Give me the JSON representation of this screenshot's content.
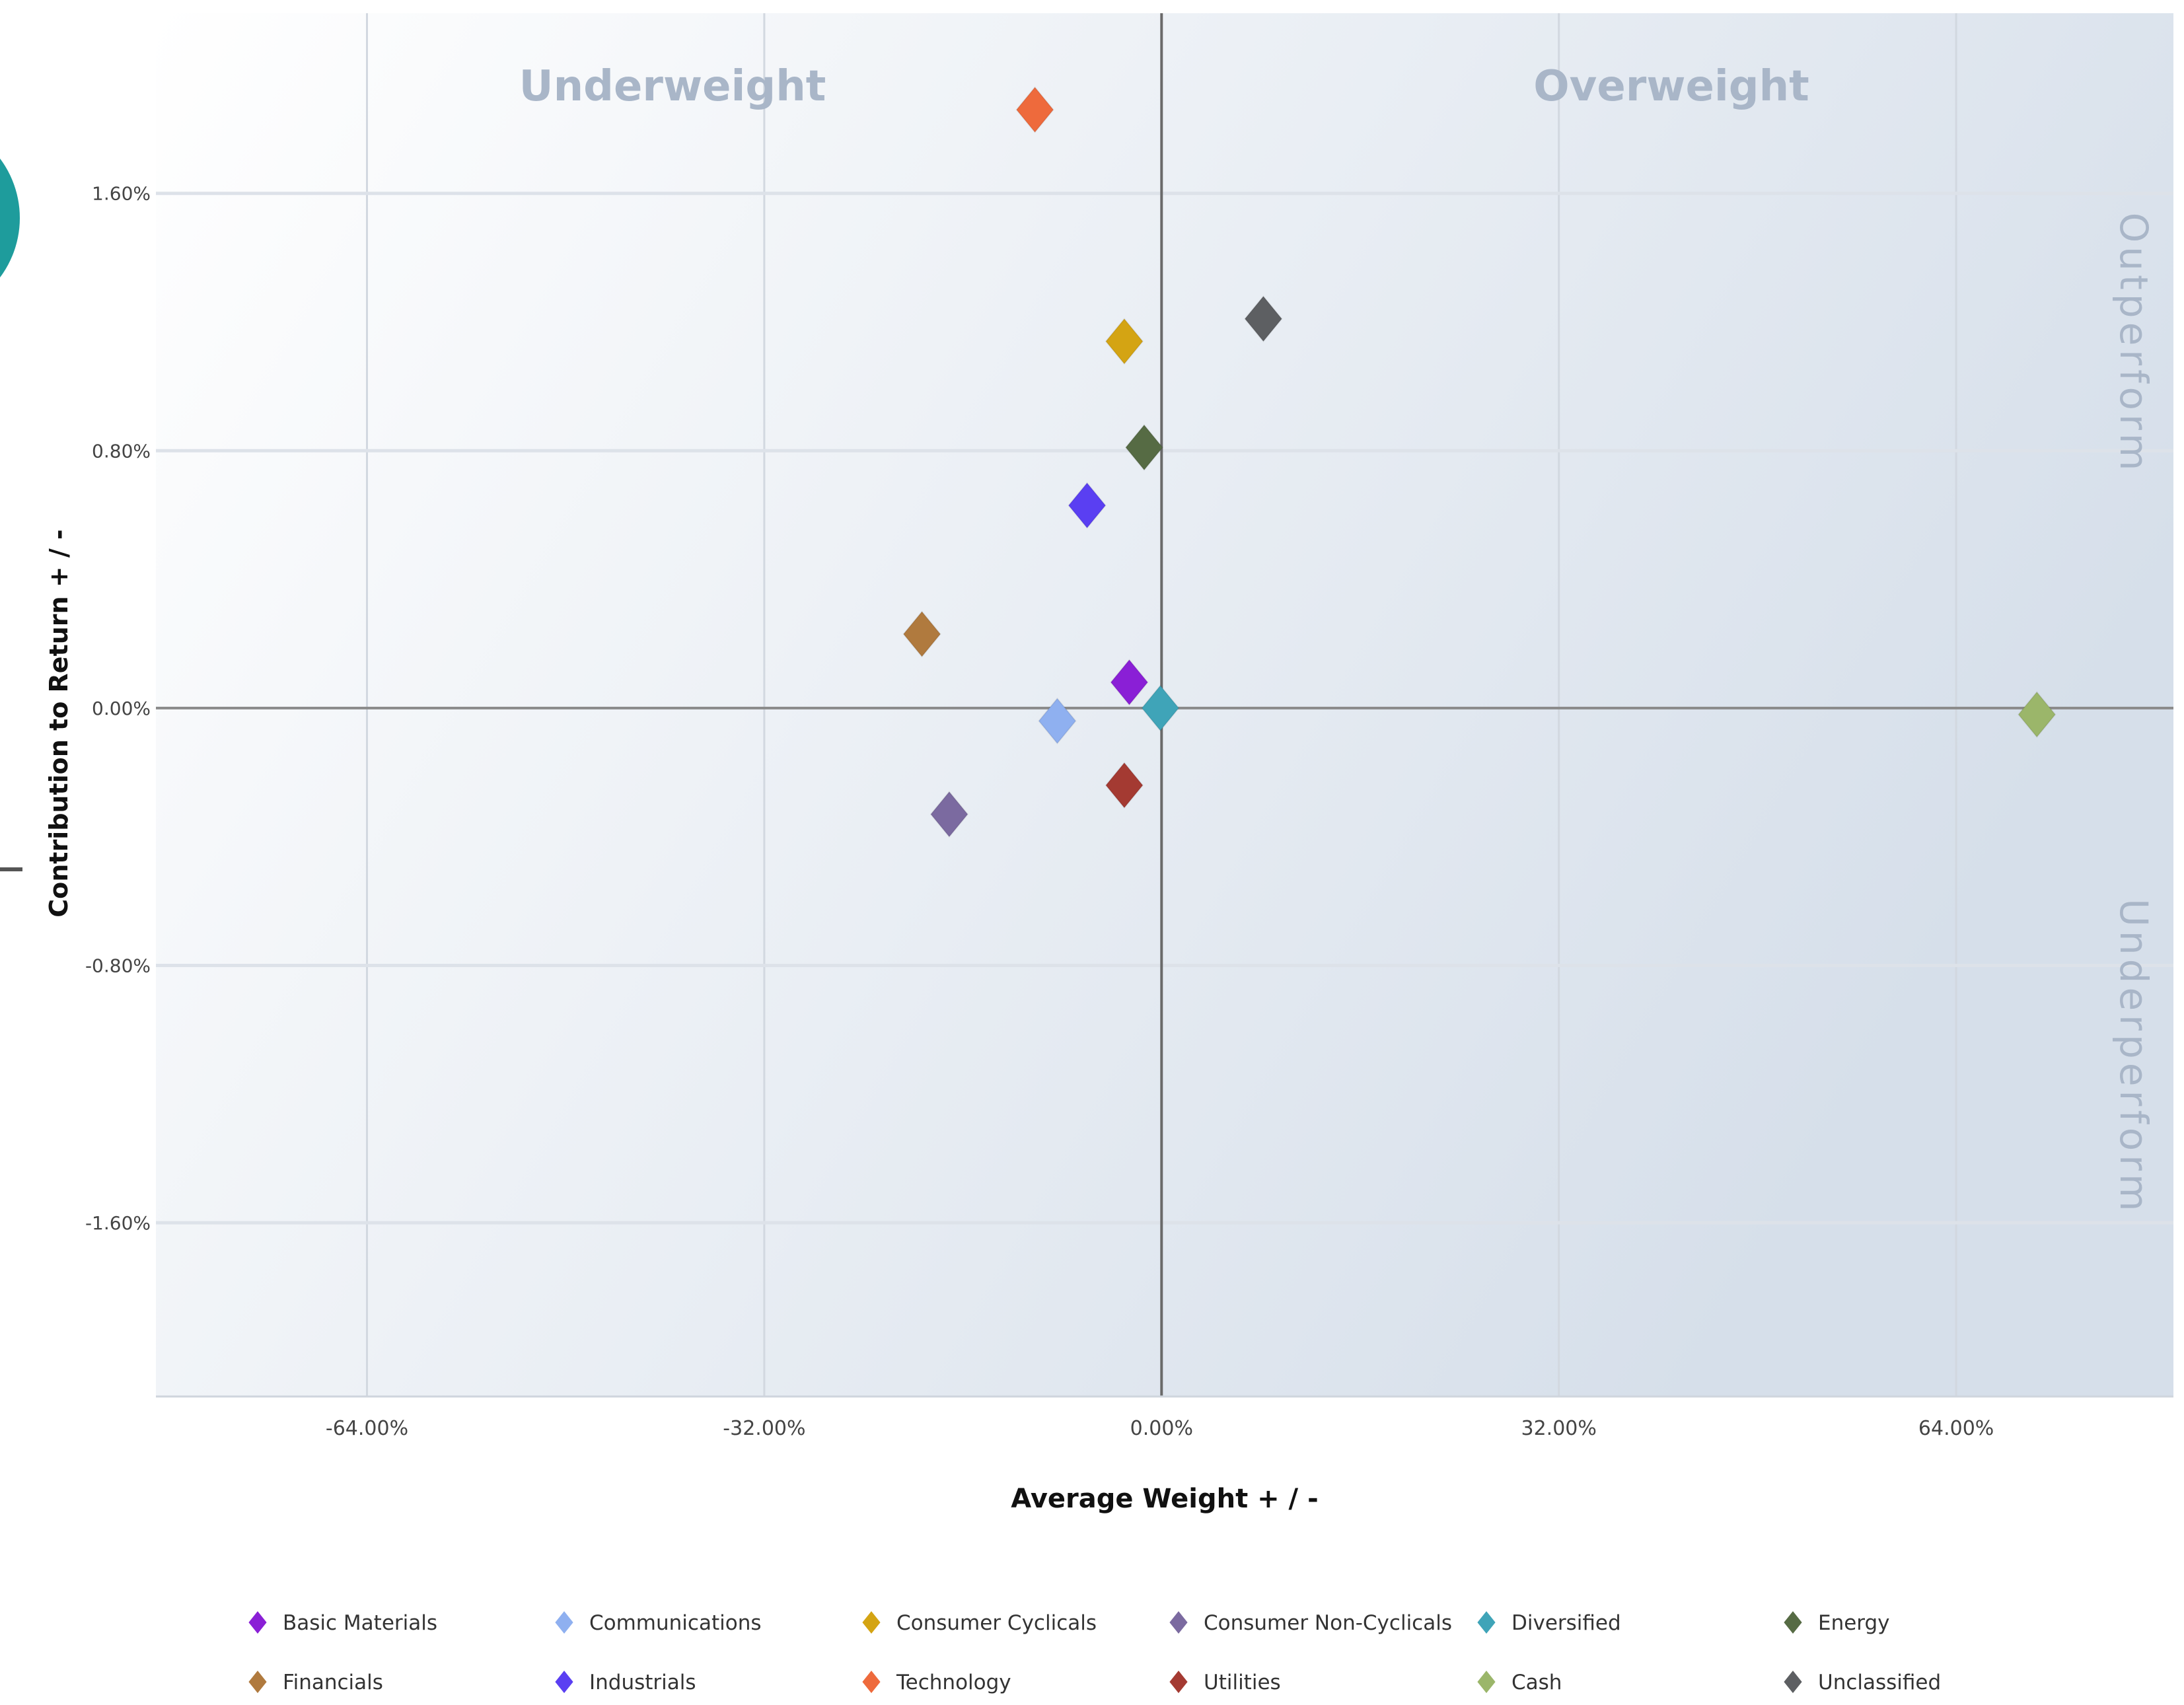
{
  "chart_data": {
    "type": "scatter",
    "title": "",
    "xlabel": "Average Weight + / -",
    "ylabel": "Contribution to Return + / -",
    "xlim": [
      -81.0,
      81.5
    ],
    "ylim": [
      -2.14,
      2.16
    ],
    "x_ticks": [
      {
        "value": -64,
        "label": "-64.00%"
      },
      {
        "value": -32,
        "label": "-32.00%"
      },
      {
        "value": 0,
        "label": "0.00%"
      },
      {
        "value": 32,
        "label": "32.00%"
      },
      {
        "value": 64,
        "label": "64.00%"
      }
    ],
    "y_ticks": [
      {
        "value": 1.6,
        "label": "1.60%"
      },
      {
        "value": 0.8,
        "label": "0.80%"
      },
      {
        "value": 0.0,
        "label": "0.00%"
      },
      {
        "value": -0.8,
        "label": "-0.80%"
      },
      {
        "value": -1.6,
        "label": "-1.60%"
      }
    ],
    "grid": true,
    "marker": "diamond",
    "quadrant_labels": {
      "top_left": "Underweight",
      "top_right": "Overweight",
      "right_top": "Outperform",
      "right_bottom": "Underperform"
    },
    "legend_position": "bottom",
    "series": [
      {
        "name": "Basic Materials",
        "color": "#8a1fd6",
        "x": -2.6,
        "y": 0.08
      },
      {
        "name": "Communications",
        "color": "#8fb0f0",
        "x": -8.4,
        "y": -0.04
      },
      {
        "name": "Consumer Cyclicals",
        "color": "#d4a413",
        "x": -3.0,
        "y": 1.14
      },
      {
        "name": "Consumer Non-Cyclicals",
        "color": "#7b6aa0",
        "x": -17.1,
        "y": -0.33
      },
      {
        "name": "Diversified",
        "color": "#3fa4b8",
        "x": -0.1,
        "y": 0.0
      },
      {
        "name": "Energy",
        "color": "#566b44",
        "x": -1.4,
        "y": 0.81
      },
      {
        "name": "Financials",
        "color": "#b07a3e",
        "x": -19.3,
        "y": 0.23
      },
      {
        "name": "Industrials",
        "color": "#5a3ff2",
        "x": -6.0,
        "y": 0.63
      },
      {
        "name": "Technology",
        "color": "#ee6a3c",
        "x": -10.2,
        "y": 1.86
      },
      {
        "name": "Utilities",
        "color": "#a43a32",
        "x": -3.0,
        "y": -0.24
      },
      {
        "name": "Cash",
        "color": "#9bb66a",
        "x": 70.5,
        "y": -0.02
      },
      {
        "name": "Unclassified",
        "color": "#5d5f62",
        "x": 8.2,
        "y": 1.21
      }
    ]
  }
}
